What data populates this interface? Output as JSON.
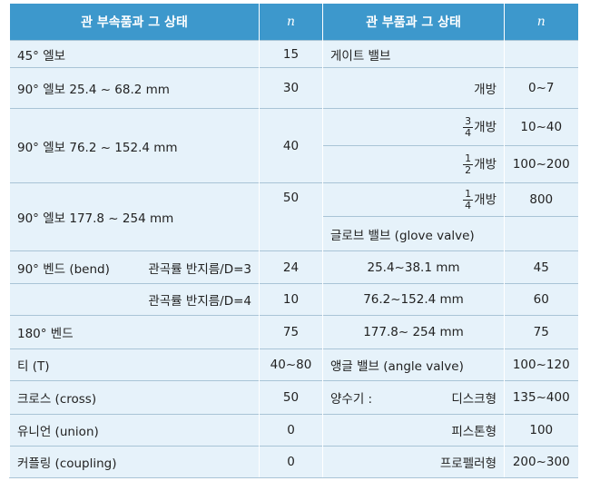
{
  "table": {
    "header": [
      "관 부속품과 그 상태",
      "n",
      "관 부품과 그 상태",
      "n"
    ],
    "left": [
      {
        "label": "45° 엘보",
        "n": "15"
      },
      {
        "label": "90° 엘보 25.4 ~ 68.2 mm",
        "n": "30"
      },
      {
        "label": "90° 엘보 76.2 ~ 152.4 mm",
        "n": "40"
      },
      {
        "label": "90° 엘보 177.8 ~ 254 mm",
        "n": "50"
      },
      {
        "label": "90° 벤드 (bend)",
        "sub": "관곡률 반지름/D=3",
        "n": "24"
      },
      {
        "sub": "관곡률 반지름/D=4",
        "n": "10"
      },
      {
        "label": "180° 벤드",
        "n": "75"
      },
      {
        "label": "티 (T)",
        "n": "40~80"
      },
      {
        "label": "크로스 (cross)",
        "n": "50"
      },
      {
        "label": "유니언 (union)",
        "n": "0"
      },
      {
        "label": "커플링 (coupling)",
        "n": "0"
      }
    ],
    "right": [
      {
        "label": "게이트 밸브"
      },
      {
        "label": "개방",
        "n": "0~7"
      },
      {
        "numerator": "3",
        "denominator": "4",
        "label": "개방",
        "n": "10~40"
      },
      {
        "numerator": "1",
        "denominator": "2",
        "label": "개방",
        "n": "100~200"
      },
      {
        "numerator": "1",
        "denominator": "4",
        "label": "개방",
        "n": "800"
      },
      {
        "label": "글로브 밸브 (glove valve)"
      },
      {
        "label": "25.4~38.1 mm",
        "n": "45"
      },
      {
        "label": "76.2~152.4 mm",
        "n": "60"
      },
      {
        "label": "177.8~ 254 mm",
        "n": "75"
      },
      {
        "label": "앵글 밸브 (angle valve)",
        "n": "100~120"
      },
      {
        "prefix": "양수기 :",
        "label": "디스크형",
        "n": "135~400"
      },
      {
        "label": "피스톤형",
        "n": "100"
      },
      {
        "label": "프로펠러형",
        "n": "200~300"
      }
    ]
  }
}
